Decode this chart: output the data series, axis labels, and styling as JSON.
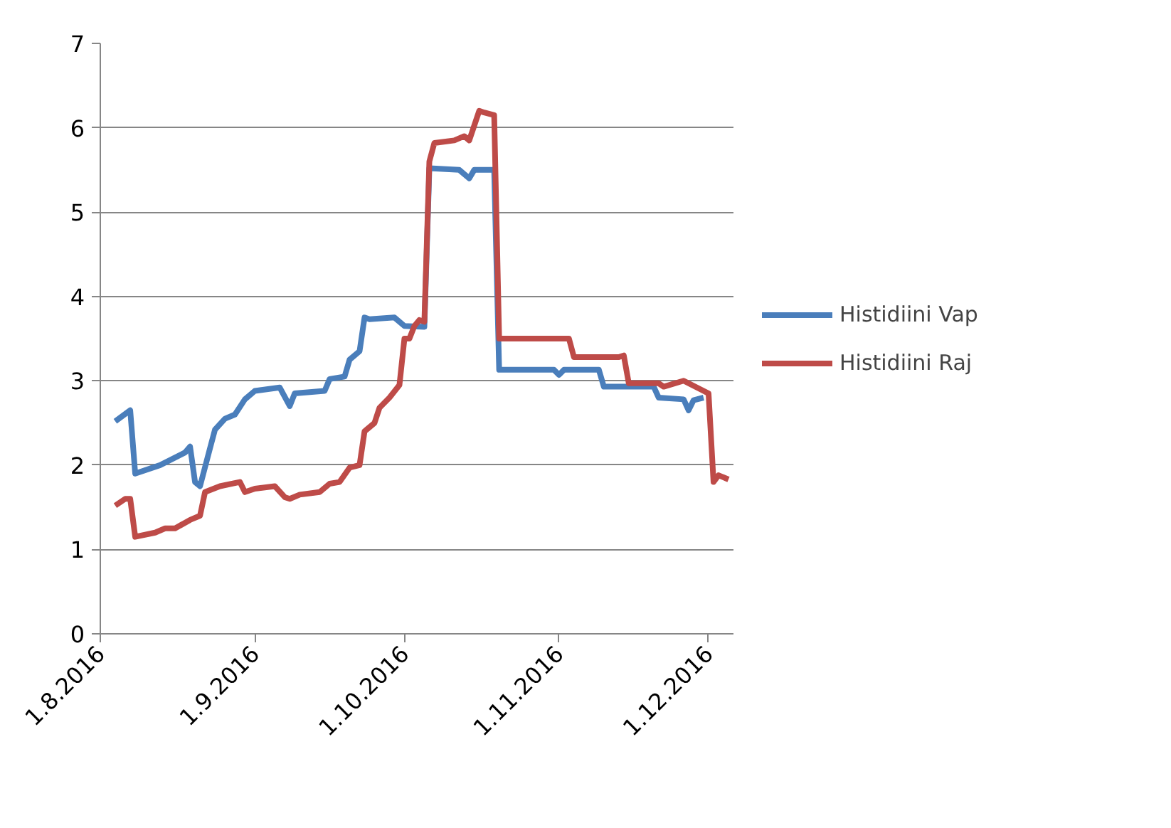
{
  "chart_data": {
    "type": "line",
    "xlim": [
      "2016-08-01",
      "2016-12-06"
    ],
    "ylim": [
      0,
      7
    ],
    "yticks": [
      0,
      1,
      2,
      3,
      4,
      5,
      6,
      7
    ],
    "xticks": [
      {
        "value": "2016-08-01",
        "label": "1.8.2016"
      },
      {
        "value": "2016-09-01",
        "label": "1.9.2016"
      },
      {
        "value": "2016-10-01",
        "label": "1.10.2016"
      },
      {
        "value": "2016-11-01",
        "label": "1.11.2016"
      },
      {
        "value": "2016-12-01",
        "label": "1.12.2016"
      }
    ],
    "grid": "y",
    "legend": "right",
    "marker": "none",
    "line_style": "solid",
    "series": [
      {
        "name": "Histidiini Vap",
        "color": "#4a7ebb",
        "x": [
          "2016-08-04",
          "2016-08-07",
          "2016-08-08",
          "2016-08-13",
          "2016-08-18",
          "2016-08-19",
          "2016-08-20",
          "2016-08-21",
          "2016-08-23",
          "2016-08-24",
          "2016-08-26",
          "2016-08-28",
          "2016-08-30",
          "2016-09-01",
          "2016-09-06",
          "2016-09-08",
          "2016-09-09",
          "2016-09-15",
          "2016-09-16",
          "2016-09-19",
          "2016-09-20",
          "2016-09-22",
          "2016-09-23",
          "2016-09-24",
          "2016-09-29",
          "2016-10-01",
          "2016-10-05",
          "2016-10-06",
          "2016-10-12",
          "2016-10-14",
          "2016-10-15",
          "2016-10-19",
          "2016-10-20",
          "2016-10-31",
          "2016-11-01",
          "2016-11-02",
          "2016-11-09",
          "2016-11-10",
          "2016-11-20",
          "2016-11-21",
          "2016-11-26",
          "2016-11-27",
          "2016-11-28",
          "2016-11-30"
        ],
        "values": [
          2.52,
          2.65,
          1.9,
          2.0,
          2.15,
          2.22,
          1.8,
          1.75,
          2.2,
          2.42,
          2.55,
          2.6,
          2.78,
          2.88,
          2.92,
          2.7,
          2.85,
          2.88,
          3.02,
          3.05,
          3.25,
          3.35,
          3.75,
          3.73,
          3.75,
          3.65,
          3.64,
          5.52,
          5.5,
          5.4,
          5.5,
          5.5,
          3.13,
          3.13,
          3.07,
          3.13,
          3.13,
          2.93,
          2.93,
          2.8,
          2.78,
          2.65,
          2.77,
          2.8
        ]
      },
      {
        "name": "Histidiini Raj",
        "color": "#be4b48",
        "x": [
          "2016-08-04",
          "2016-08-06",
          "2016-08-07",
          "2016-08-08",
          "2016-08-12",
          "2016-08-14",
          "2016-08-16",
          "2016-08-19",
          "2016-08-21",
          "2016-08-22",
          "2016-08-25",
          "2016-08-29",
          "2016-08-30",
          "2016-09-01",
          "2016-09-05",
          "2016-09-07",
          "2016-09-08",
          "2016-09-10",
          "2016-09-14",
          "2016-09-16",
          "2016-09-18",
          "2016-09-20",
          "2016-09-22",
          "2016-09-23",
          "2016-09-25",
          "2016-09-26",
          "2016-09-28",
          "2016-09-30",
          "2016-10-01",
          "2016-10-02",
          "2016-10-03",
          "2016-10-04",
          "2016-10-05",
          "2016-10-06",
          "2016-10-07",
          "2016-10-11",
          "2016-10-13",
          "2016-10-14",
          "2016-10-16",
          "2016-10-17",
          "2016-10-19",
          "2016-10-20",
          "2016-11-03",
          "2016-11-04",
          "2016-11-13",
          "2016-11-14",
          "2016-11-15",
          "2016-11-21",
          "2016-11-22",
          "2016-11-26",
          "2016-11-30",
          "2016-12-01",
          "2016-12-02",
          "2016-12-03",
          "2016-12-05"
        ],
        "values": [
          1.52,
          1.6,
          1.6,
          1.15,
          1.2,
          1.25,
          1.25,
          1.35,
          1.4,
          1.68,
          1.75,
          1.8,
          1.68,
          1.72,
          1.75,
          1.62,
          1.6,
          1.65,
          1.68,
          1.78,
          1.8,
          1.97,
          2.0,
          2.4,
          2.5,
          2.68,
          2.8,
          2.95,
          3.5,
          3.5,
          3.65,
          3.72,
          3.7,
          5.6,
          5.82,
          5.85,
          5.9,
          5.85,
          6.2,
          6.18,
          6.15,
          3.5,
          3.5,
          3.28,
          3.28,
          3.3,
          2.97,
          2.97,
          2.93,
          3.0,
          2.88,
          2.85,
          1.8,
          1.88,
          1.83
        ]
      }
    ]
  }
}
